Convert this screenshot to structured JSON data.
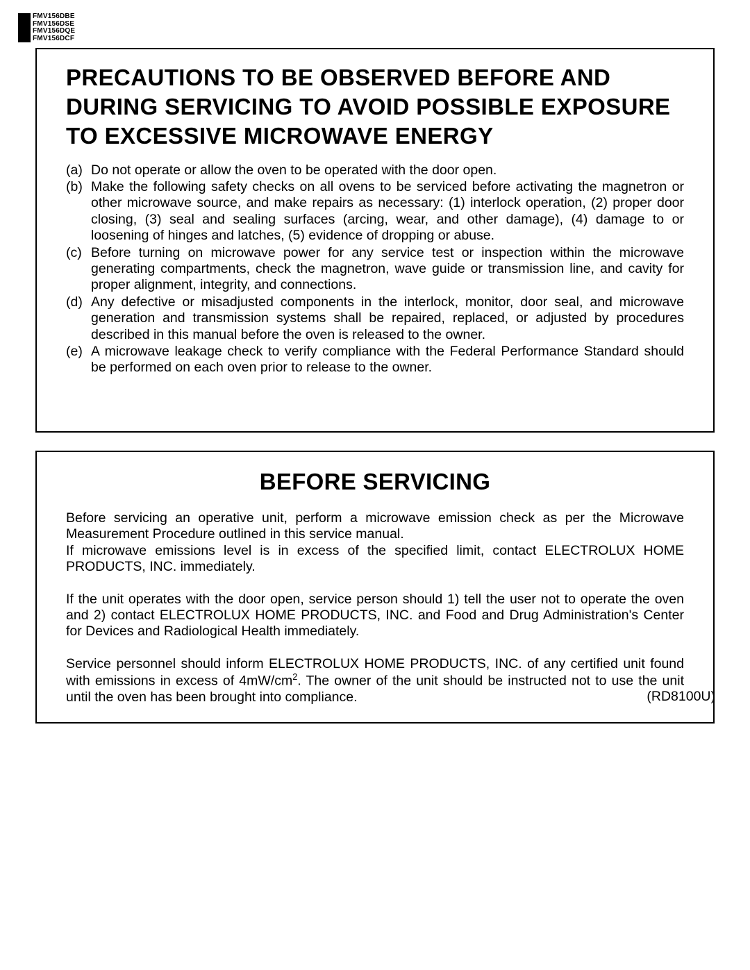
{
  "models": [
    "FMV156DBE",
    "FMV156DSE",
    "FMV156DQE",
    "FMV156DCF"
  ],
  "box1": {
    "title": "PRECAUTIONS TO BE OBSERVED BEFORE AND DURING SERVICING TO AVOID POSSIBLE EXPOSURE TO EXCESSIVE MICROWAVE ENERGY",
    "items": [
      {
        "label": "(a)",
        "text": "Do not operate or allow the oven to be operated with the door open."
      },
      {
        "label": "(b)",
        "text": "Make the following safety checks on all ovens to be serviced before activating the magnetron or other microwave source, and make repairs as necessary: (1) interlock operation, (2) proper door closing, (3) seal and sealing surfaces (arcing, wear, and other damage), (4) damage to or loosening of hinges and latches, (5) evidence of dropping or abuse."
      },
      {
        "label": "(c)",
        "text": "Before turning on microwave power for any service test or inspection within the microwave generating compartments, check the magnetron, wave guide or transmission line, and cavity for proper alignment, integrity, and connections."
      },
      {
        "label": "(d)",
        "text": "Any defective or misadjusted components in the interlock, monitor, door seal, and microwave generation and transmission systems shall be repaired, replaced, or adjusted by procedures described in this manual before the oven is released to the owner."
      },
      {
        "label": "(e)",
        "text": "A microwave leakage check to verify compliance with the Federal Performance Standard should be performed on each oven prior to release to the owner."
      }
    ]
  },
  "box2": {
    "title": "BEFORE SERVICING",
    "para1a": "Before servicing an operative unit, perform a microwave emission check as per the Microwave Measurement Procedure outlined in this service manual.",
    "para1b": "If microwave emissions level is in excess of the specified limit, contact ELECTROLUX HOME PRODUCTS, INC. immediately.",
    "para2": "If the unit operates with the door open, service person should 1) tell the user not to operate the oven and 2) contact ELECTROLUX HOME PRODUCTS, INC. and Food and Drug Administration's Center for Devices and Radiological Health immediately.",
    "para3_pre": "Service personnel should inform ELECTROLUX HOME PRODUCTS, INC. of any certified unit found with emissions in excess of 4mW/cm",
    "para3_sup": "2",
    "para3_post": ". The owner of the unit should be instructed not to use the unit until the oven has been brought into compliance."
  },
  "doc_code": "(RD8100U)",
  "colors": {
    "text": "#000000",
    "background": "#ffffff",
    "border": "#000000"
  }
}
